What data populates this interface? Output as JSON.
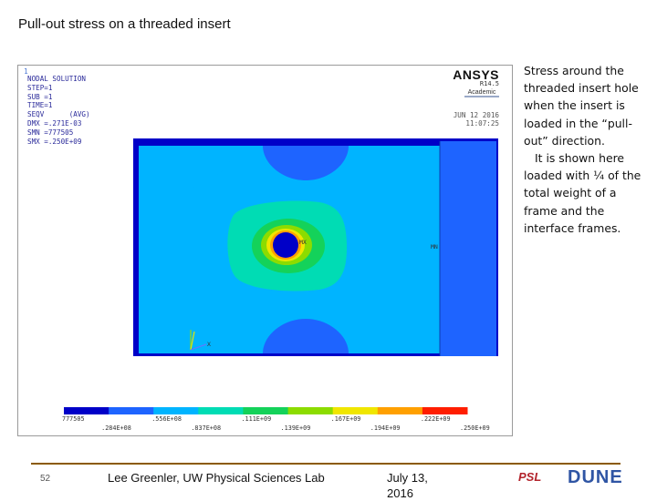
{
  "slide": {
    "title": "Pull-out stress on a threaded insert"
  },
  "ansys_panel": {
    "panel_index": "1",
    "solution_info": [
      "NODAL SOLUTION",
      "STEP=1",
      "SUB =1",
      "TIME=1",
      "SEQV      (AVG)",
      "DMX =.271E-03",
      "SMN =777505",
      "SMX =.250E+09"
    ],
    "brand": {
      "name": "ANSYS",
      "version": "R14.5",
      "edition": "Academic"
    },
    "datetime": [
      "JUN 12 2016",
      "11:07:25"
    ],
    "node_labels": {
      "max": "MX",
      "min": "MN",
      "axis": "X"
    },
    "legend": {
      "colors": [
        "#0000c8",
        "#1e64ff",
        "#00b4ff",
        "#00dcb4",
        "#14d25a",
        "#8cdc00",
        "#f0e600",
        "#ffa000",
        "#ff1e00"
      ],
      "labels_top": [
        "777505",
        ".556E+08",
        ".111E+09",
        ".167E+09",
        ".222E+09"
      ],
      "labels_bottom": [
        ".284E+08",
        ".837E+08",
        ".139E+09",
        ".194E+09",
        ".250E+09"
      ]
    },
    "colors": {
      "outer_band": "#0000c8",
      "main_field": "#00b4ff",
      "side_block": "#1e64ff",
      "hole": "#0000c8"
    }
  },
  "caption": {
    "paragraph_1": "Stress around the threaded insert hole when the insert is loaded in the “pull-out” direction.",
    "paragraph_2": "It is shown here loaded with ¼ of the total weight of a frame and the interface frames."
  },
  "footer": {
    "page_number": "52",
    "author": "Lee Greenler, UW Physical Sciences Lab",
    "date": "July 13, 2016",
    "logo_left": "PSL",
    "logo_right": "DUNE"
  }
}
